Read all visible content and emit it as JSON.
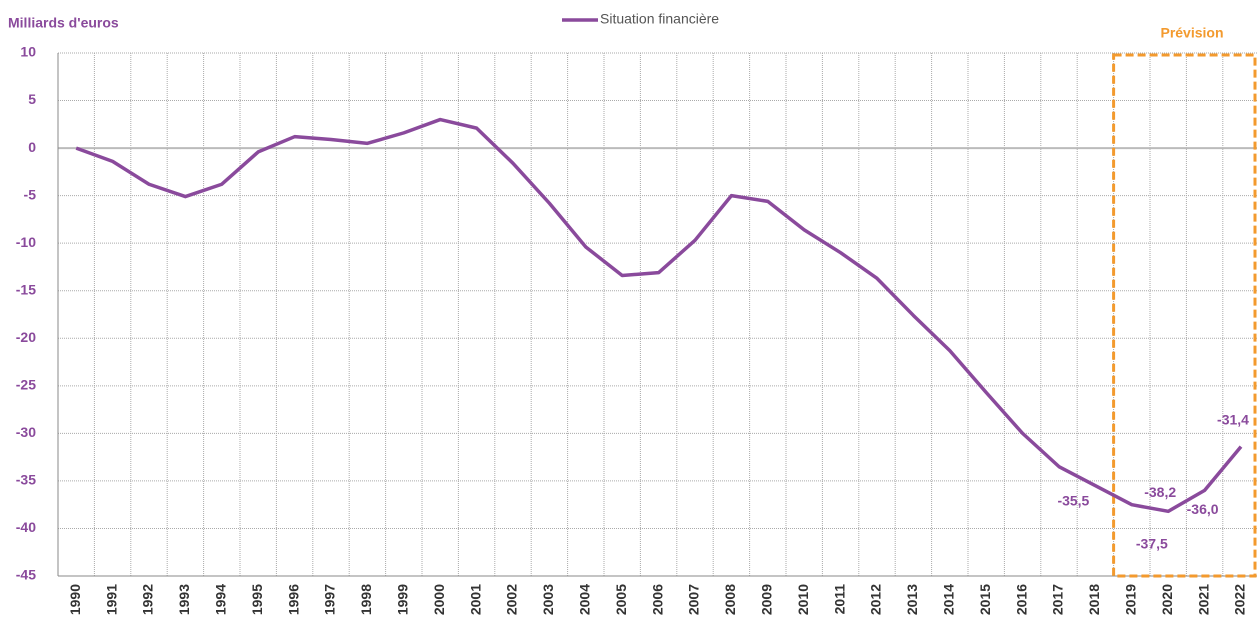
{
  "chart_data": {
    "type": "line",
    "y_axis_label": "Milliards d'euros",
    "annotation": "Prévision",
    "categories": [
      "1990",
      "1991",
      "1992",
      "1993",
      "1994",
      "1995",
      "1996",
      "1997",
      "1998",
      "1999",
      "2000",
      "2001",
      "2002",
      "2003",
      "2004",
      "2005",
      "2006",
      "2007",
      "2008",
      "2009",
      "2010",
      "2011",
      "2012",
      "2013",
      "2014",
      "2015",
      "2016",
      "2017",
      "2018",
      "2019",
      "2020",
      "2021",
      "2022"
    ],
    "series": [
      {
        "name": "Situation financière",
        "color": "#8a4a9c",
        "values": [
          0,
          -1.4,
          -3.8,
          -5.1,
          -3.8,
          -0.4,
          1.2,
          0.9,
          0.5,
          1.6,
          3.0,
          2.1,
          -1.6,
          -5.8,
          -10.4,
          -13.4,
          -13.1,
          -9.7,
          -5.0,
          -5.6,
          -8.6,
          -11.0,
          -13.7,
          -17.6,
          -21.3,
          -25.7,
          -30.0,
          -33.5,
          -35.5,
          -37.5,
          -38.2,
          -36.0,
          -31.4
        ],
        "value_labels": [
          null,
          null,
          null,
          null,
          null,
          null,
          null,
          null,
          null,
          null,
          null,
          null,
          null,
          null,
          null,
          null,
          null,
          null,
          null,
          null,
          null,
          null,
          null,
          null,
          null,
          null,
          null,
          null,
          "-35,5",
          "-37,5",
          "-38,2",
          "-36,0",
          "-31,4"
        ]
      }
    ],
    "ylim": [
      -45,
      10
    ],
    "yticks": [
      10,
      5,
      0,
      -5,
      -10,
      -15,
      -20,
      -25,
      -30,
      -35,
      -40,
      -45
    ],
    "grid": true
  }
}
